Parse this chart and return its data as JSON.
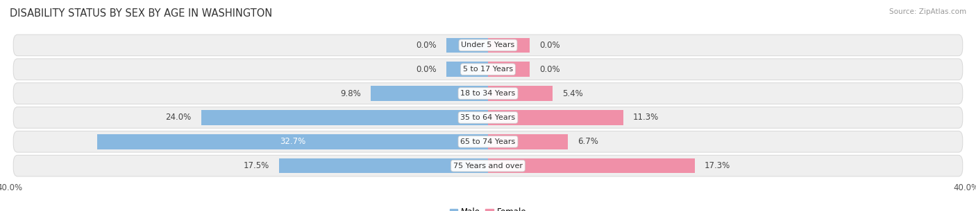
{
  "title": "DISABILITY STATUS BY SEX BY AGE IN WASHINGTON",
  "source": "Source: ZipAtlas.com",
  "categories": [
    "Under 5 Years",
    "5 to 17 Years",
    "18 to 34 Years",
    "35 to 64 Years",
    "65 to 74 Years",
    "75 Years and over"
  ],
  "male_values": [
    0.0,
    0.0,
    9.8,
    24.0,
    32.7,
    17.5
  ],
  "female_values": [
    0.0,
    0.0,
    5.4,
    11.3,
    6.7,
    17.3
  ],
  "male_color": "#88b8e0",
  "female_color": "#f090a8",
  "row_bg_color": "#efefef",
  "row_border_color": "#d8d8d8",
  "xlim": 40.0,
  "title_fontsize": 10.5,
  "label_fontsize": 8.5,
  "tick_fontsize": 8.5,
  "category_fontsize": 8.0,
  "background_color": "#ffffff",
  "zero_bar_width": 3.5
}
